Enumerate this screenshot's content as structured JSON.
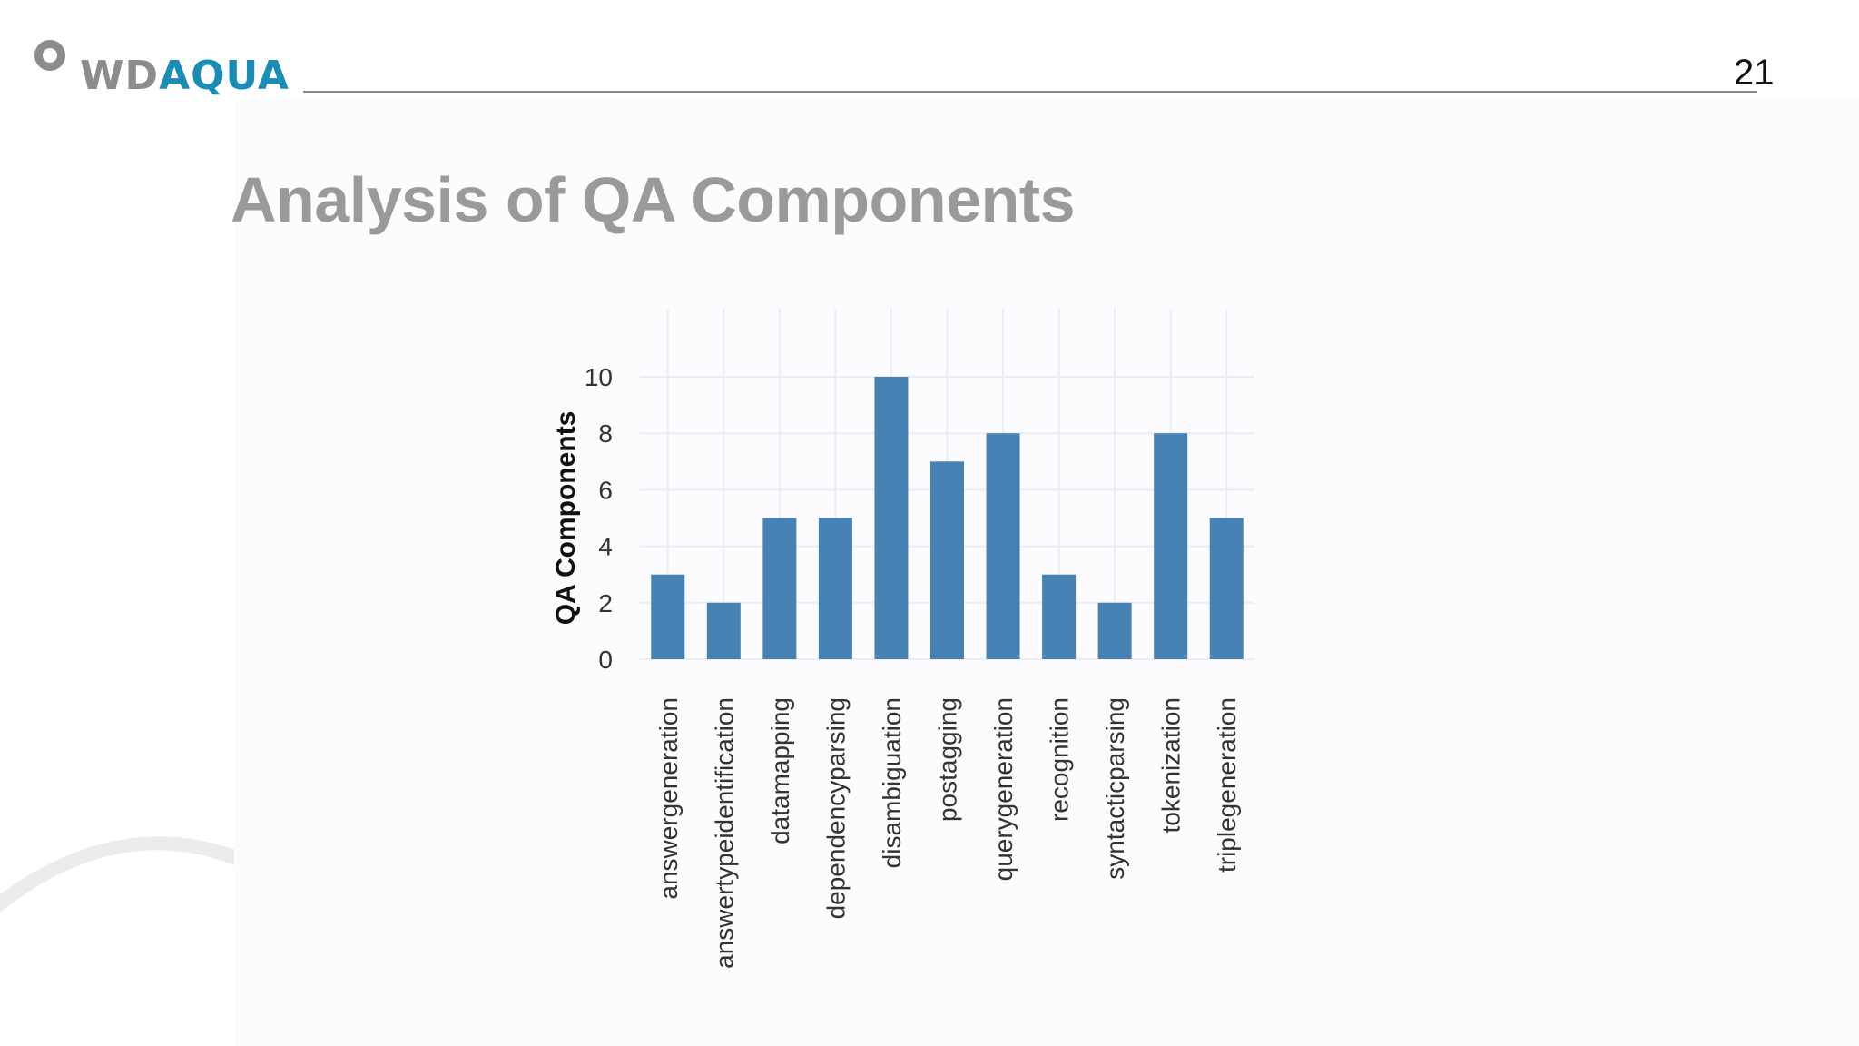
{
  "header": {
    "logo_text_gray": "WD",
    "logo_text_blue": "AQUA",
    "page_number": "21"
  },
  "slide": {
    "title": "Analysis of QA Components"
  },
  "colors": {
    "bar": "#4682b4",
    "title": "#9a9a9c",
    "logo_gray": "#8c8c8c",
    "logo_blue": "#1a8db7",
    "grid": "#ececf2"
  },
  "chart_data": {
    "type": "bar",
    "ylabel": "QA Components",
    "xlabel": "",
    "categories": [
      "answergeneration",
      "answertypeidentification",
      "datamapping",
      "dependencyparsing",
      "disambiguation",
      "postagging",
      "querygeneration",
      "recognition",
      "syntacticparsing",
      "tokenization",
      "triplegeneration"
    ],
    "values": [
      3,
      2,
      5,
      5,
      10,
      7,
      8,
      3,
      2,
      8,
      5
    ],
    "yticks": [
      "0",
      "2",
      "4",
      "6",
      "8",
      "10"
    ],
    "ylim": [
      0,
      10
    ],
    "grid": true
  }
}
